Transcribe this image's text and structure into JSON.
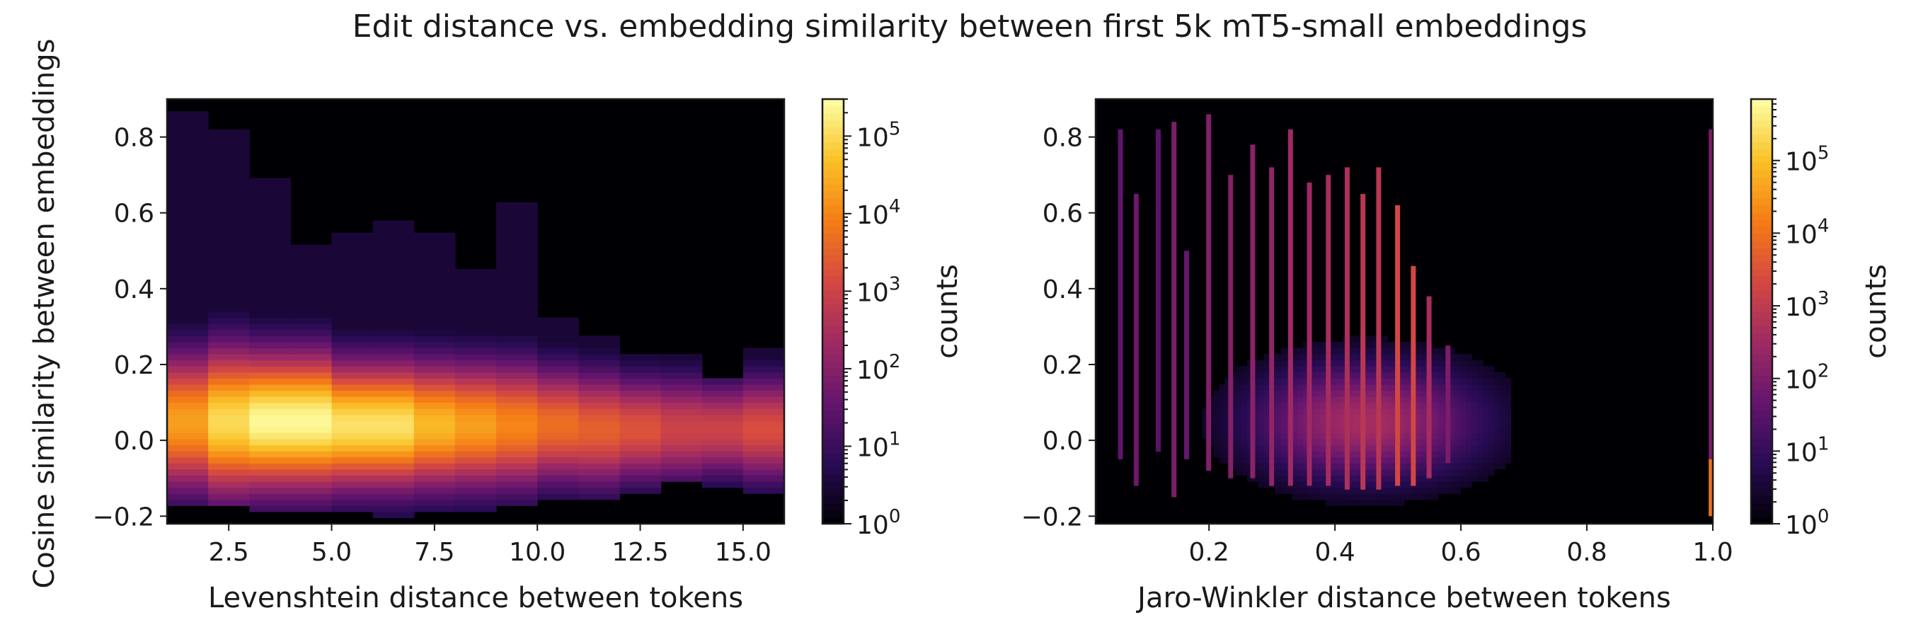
{
  "figure": {
    "title": "Edit distance vs. embedding similarity between first 5k mT5-small embeddings",
    "shared_ylabel": "Cosine similarity between embeddings"
  },
  "chart_data": [
    {
      "type": "heatmap",
      "xlabel": "Levenshtein distance between tokens",
      "ylabel": "Cosine similarity between embeddings",
      "xlim": [
        1,
        16
      ],
      "ylim": [
        -0.22,
        0.9
      ],
      "xticks": [
        {
          "value": 2.5,
          "label": "2.5"
        },
        {
          "value": 5.0,
          "label": "5.0"
        },
        {
          "value": 7.5,
          "label": "7.5"
        },
        {
          "value": 10.0,
          "label": "10.0"
        },
        {
          "value": 12.5,
          "label": "12.5"
        },
        {
          "value": 15.0,
          "label": "15.0"
        }
      ],
      "yticks": [
        {
          "value": 0.8,
          "label": "0.8"
        },
        {
          "value": 0.6,
          "label": "0.6"
        },
        {
          "value": 0.4,
          "label": "0.4"
        },
        {
          "value": 0.2,
          "label": "0.2"
        },
        {
          "value": 0.0,
          "label": "0.0"
        },
        {
          "value": -0.2,
          "label": "−0.2"
        }
      ],
      "colorscale": "inferno",
      "color_scale_type": "log",
      "background_color": "#000004",
      "colorbar": {
        "label": "counts",
        "range": [
          1,
          300000
        ],
        "ticks": [
          {
            "exp": 0,
            "label": "10",
            "sup": "0"
          },
          {
            "exp": 1,
            "label": "10",
            "sup": "1"
          },
          {
            "exp": 2,
            "label": "10",
            "sup": "2"
          },
          {
            "exp": 3,
            "label": "10",
            "sup": "3"
          },
          {
            "exp": 4,
            "label": "10",
            "sup": "4"
          },
          {
            "exp": 5,
            "label": "10",
            "sup": "5"
          }
        ]
      },
      "columns": [
        {
          "x0": 1,
          "x1": 2,
          "ymin": -0.17,
          "ymax": 0.87,
          "center": 0.05,
          "spread": 0.13,
          "peak_log10": 4.3
        },
        {
          "x0": 2,
          "x1": 3,
          "ymin": -0.17,
          "ymax": 0.82,
          "center": 0.05,
          "spread": 0.14,
          "peak_log10": 5.0
        },
        {
          "x0": 3,
          "x1": 4,
          "ymin": -0.18,
          "ymax": 0.7,
          "center": 0.05,
          "spread": 0.13,
          "peak_log10": 5.4
        },
        {
          "x0": 4,
          "x1": 5,
          "ymin": -0.18,
          "ymax": 0.52,
          "center": 0.05,
          "spread": 0.13,
          "peak_log10": 5.4
        },
        {
          "x0": 5,
          "x1": 6,
          "ymin": -0.18,
          "ymax": 0.55,
          "center": 0.04,
          "spread": 0.12,
          "peak_log10": 5.1
        },
        {
          "x0": 6,
          "x1": 7,
          "ymin": -0.2,
          "ymax": 0.58,
          "center": 0.04,
          "spread": 0.12,
          "peak_log10": 5.1
        },
        {
          "x0": 7,
          "x1": 8,
          "ymin": -0.18,
          "ymax": 0.54,
          "center": 0.04,
          "spread": 0.12,
          "peak_log10": 4.6
        },
        {
          "x0": 8,
          "x1": 9,
          "ymin": -0.18,
          "ymax": 0.45,
          "center": 0.04,
          "spread": 0.12,
          "peak_log10": 4.3
        },
        {
          "x0": 9,
          "x1": 10,
          "ymin": -0.17,
          "ymax": 0.62,
          "center": 0.04,
          "spread": 0.12,
          "peak_log10": 4.0
        },
        {
          "x0": 10,
          "x1": 11,
          "ymin": -0.16,
          "ymax": 0.33,
          "center": 0.04,
          "spread": 0.11,
          "peak_log10": 3.7
        },
        {
          "x0": 11,
          "x1": 12,
          "ymin": -0.15,
          "ymax": 0.28,
          "center": 0.03,
          "spread": 0.11,
          "peak_log10": 3.5
        },
        {
          "x0": 12,
          "x1": 13,
          "ymin": -0.14,
          "ymax": 0.23,
          "center": 0.03,
          "spread": 0.1,
          "peak_log10": 3.3
        },
        {
          "x0": 13,
          "x1": 14,
          "ymin": -0.1,
          "ymax": 0.22,
          "center": 0.03,
          "spread": 0.1,
          "peak_log10": 3.0
        },
        {
          "x0": 14,
          "x1": 15,
          "ymin": -0.12,
          "ymax": 0.17,
          "center": 0.03,
          "spread": 0.09,
          "peak_log10": 3.0
        },
        {
          "x0": 15,
          "x1": 16,
          "ymin": -0.14,
          "ymax": 0.24,
          "center": 0.03,
          "spread": 0.1,
          "peak_log10": 3.2
        }
      ]
    },
    {
      "type": "heatmap",
      "xlabel": "Jaro-Winkler distance between tokens",
      "xlim": [
        0.02,
        1.0
      ],
      "ylim": [
        -0.22,
        0.9
      ],
      "xticks": [
        {
          "value": 0.2,
          "label": "0.2"
        },
        {
          "value": 0.4,
          "label": "0.4"
        },
        {
          "value": 0.6,
          "label": "0.6"
        },
        {
          "value": 0.8,
          "label": "0.8"
        },
        {
          "value": 1.0,
          "label": "1.0"
        }
      ],
      "yticks": [
        {
          "value": 0.8,
          "label": "0.8"
        },
        {
          "value": 0.6,
          "label": "0.6"
        },
        {
          "value": 0.4,
          "label": "0.4"
        },
        {
          "value": 0.2,
          "label": "0.2"
        },
        {
          "value": 0.0,
          "label": "0.0"
        },
        {
          "value": -0.2,
          "label": "−0.2"
        }
      ],
      "colorscale": "inferno",
      "color_scale_type": "log",
      "background_color": "#000004",
      "colorbar": {
        "label": "counts",
        "range": [
          1,
          700000
        ],
        "ticks": [
          {
            "exp": 0,
            "label": "10",
            "sup": "0"
          },
          {
            "exp": 1,
            "label": "10",
            "sup": "1"
          },
          {
            "exp": 2,
            "label": "10",
            "sup": "2"
          },
          {
            "exp": 3,
            "label": "10",
            "sup": "3"
          },
          {
            "exp": 4,
            "label": "10",
            "sup": "4"
          },
          {
            "exp": 5,
            "label": "10",
            "sup": "5"
          }
        ]
      },
      "blob": {
        "x_center": 0.45,
        "x_spread": 0.13,
        "x_min": 0.04,
        "x_max": 0.68,
        "y_center": 0.05,
        "y_spread": 0.11,
        "peak_log10": 2.6
      },
      "stripes": [
        {
          "x": 0.06,
          "ymin": -0.05,
          "ymax": 0.82,
          "log10": 1.6
        },
        {
          "x": 0.085,
          "ymin": -0.12,
          "ymax": 0.65,
          "log10": 1.8
        },
        {
          "x": 0.12,
          "ymin": -0.03,
          "ymax": 0.82,
          "log10": 1.5
        },
        {
          "x": 0.145,
          "ymin": -0.15,
          "ymax": 0.84,
          "log10": 2.0
        },
        {
          "x": 0.165,
          "ymin": -0.05,
          "ymax": 0.5,
          "log10": 1.7
        },
        {
          "x": 0.2,
          "ymin": -0.08,
          "ymax": 0.86,
          "log10": 2.1
        },
        {
          "x": 0.235,
          "ymin": -0.1,
          "ymax": 0.7,
          "log10": 2.1
        },
        {
          "x": 0.27,
          "ymin": -0.1,
          "ymax": 0.78,
          "log10": 2.2
        },
        {
          "x": 0.3,
          "ymin": -0.12,
          "ymax": 0.72,
          "log10": 2.3
        },
        {
          "x": 0.33,
          "ymin": -0.12,
          "ymax": 0.82,
          "log10": 2.5
        },
        {
          "x": 0.36,
          "ymin": -0.12,
          "ymax": 0.68,
          "log10": 2.5
        },
        {
          "x": 0.39,
          "ymin": -0.12,
          "ymax": 0.7,
          "log10": 2.6
        },
        {
          "x": 0.42,
          "ymin": -0.13,
          "ymax": 0.72,
          "log10": 2.7
        },
        {
          "x": 0.445,
          "ymin": -0.13,
          "ymax": 0.65,
          "log10": 2.9
        },
        {
          "x": 0.47,
          "ymin": -0.13,
          "ymax": 0.72,
          "log10": 2.9
        },
        {
          "x": 0.5,
          "ymin": -0.12,
          "ymax": 0.62,
          "log10": 3.3
        },
        {
          "x": 0.525,
          "ymin": -0.12,
          "ymax": 0.46,
          "log10": 3.3
        },
        {
          "x": 0.55,
          "ymin": -0.1,
          "ymax": 0.38,
          "log10": 2.6
        },
        {
          "x": 0.58,
          "ymin": -0.06,
          "ymax": 0.25,
          "log10": 2.0
        },
        {
          "x": 0.998,
          "ymin": -0.2,
          "ymax": 0.82,
          "log10": 2.0
        },
        {
          "x": 0.998,
          "ymin": -0.2,
          "ymax": -0.05,
          "log10": 4.0
        }
      ]
    }
  ]
}
